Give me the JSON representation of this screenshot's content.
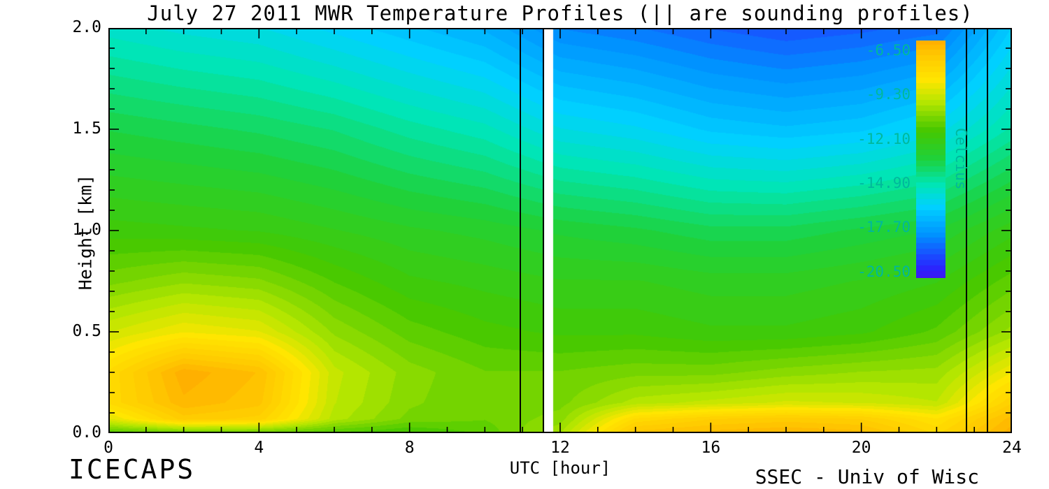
{
  "title": "July 27 2011 MWR Temperature Profiles (|| are sounding profiles)",
  "footer": {
    "left": "ICECAPS",
    "right": "SSEC - Univ of Wisc"
  },
  "axes": {
    "x": {
      "label": "UTC [hour]",
      "min": 0,
      "max": 24,
      "tick_values": [
        0,
        4,
        8,
        12,
        16,
        20,
        24
      ],
      "tick_labels": [
        "0",
        "4",
        "8",
        "12",
        "16",
        "20",
        "24"
      ],
      "minor_step": 1
    },
    "y": {
      "label": "Height [km]",
      "min": 0,
      "max": 2,
      "tick_values": [
        0,
        0.5,
        1.0,
        1.5,
        2.0
      ],
      "tick_labels": [
        "0.0",
        "0.5",
        "1.0",
        "1.5",
        "2.0"
      ],
      "minor_step": 0.1
    }
  },
  "colorbar": {
    "title": "Celcius",
    "labels": [
      "-6.50",
      "-9.30",
      "-12.10",
      "-14.90",
      "-17.70",
      "-20.50"
    ],
    "label_values": [
      -6.5,
      -9.3,
      -12.1,
      -14.9,
      -17.7,
      -20.5
    ],
    "label_color": "#00b89c",
    "range_top": -5.9,
    "range_bottom": -20.9
  },
  "colormap": [
    {
      "v": -22.0,
      "c": "#6000e0"
    },
    {
      "v": -20.2,
      "c": "#2828ff"
    },
    {
      "v": -18.2,
      "c": "#0092ff"
    },
    {
      "v": -16.4,
      "c": "#00d2ff"
    },
    {
      "v": -15.0,
      "c": "#00e6b4"
    },
    {
      "v": -13.4,
      "c": "#1ed23c"
    },
    {
      "v": -11.6,
      "c": "#46c800"
    },
    {
      "v": -9.8,
      "c": "#b4e600"
    },
    {
      "v": -8.4,
      "c": "#ffe600"
    },
    {
      "v": -6.8,
      "c": "#ffc800"
    },
    {
      "v": -5.0,
      "c": "#ff9600"
    }
  ],
  "chart_data": {
    "type": "heatmap",
    "title": "July 27 2011 MWR Temperature Profiles (|| are sounding profiles)",
    "xlabel": "UTC [hour]",
    "ylabel": "Height [km]",
    "unit": "Celcius",
    "xlim": [
      0,
      24
    ],
    "ylim": [
      0,
      2
    ],
    "x_hours": [
      0,
      2,
      4,
      6,
      8,
      10,
      12,
      14,
      16,
      18,
      20,
      22,
      24
    ],
    "y_heights_km": [
      0.0,
      0.07,
      0.15,
      0.3,
      0.5,
      0.75,
      1.0,
      1.5,
      2.0
    ],
    "values_celsius_rows_bottom_to_top": [
      [
        -11.5,
        -11.2,
        -11.2,
        -11.5,
        -11.8,
        -11.3,
        -10.0,
        -6.6,
        -6.3,
        -6.1,
        -6.3,
        -7.6,
        -5.9
      ],
      [
        -9.0,
        -7.0,
        -7.3,
        -9.8,
        -10.8,
        -11.0,
        -10.5,
        -7.8,
        -7.2,
        -7.0,
        -7.2,
        -8.2,
        -6.3
      ],
      [
        -7.8,
        -6.2,
        -6.7,
        -9.6,
        -10.6,
        -11.0,
        -10.8,
        -9.8,
        -9.5,
        -9.2,
        -9.3,
        -9.6,
        -7.2
      ],
      [
        -7.8,
        -5.9,
        -6.5,
        -9.5,
        -10.5,
        -11.0,
        -11.0,
        -10.8,
        -10.8,
        -10.5,
        -10.3,
        -10.2,
        -8.6
      ],
      [
        -9.3,
        -8.6,
        -8.9,
        -10.4,
        -11.2,
        -11.6,
        -11.8,
        -11.8,
        -12.0,
        -12.0,
        -11.8,
        -11.3,
        -10.2
      ],
      [
        -10.8,
        -10.4,
        -10.6,
        -11.4,
        -12.0,
        -12.2,
        -12.4,
        -12.4,
        -12.6,
        -12.6,
        -12.4,
        -12.1,
        -11.2
      ],
      [
        -11.9,
        -12.0,
        -12.1,
        -12.4,
        -12.7,
        -12.9,
        -13.2,
        -13.4,
        -13.7,
        -13.7,
        -13.4,
        -13.1,
        -12.2
      ],
      [
        -13.5,
        -13.7,
        -13.9,
        -14.2,
        -14.7,
        -15.1,
        -15.9,
        -16.2,
        -16.7,
        -16.9,
        -16.7,
        -16.1,
        -14.8
      ],
      [
        -15.4,
        -15.7,
        -15.9,
        -16.4,
        -16.9,
        -17.4,
        -18.4,
        -18.7,
        -19.1,
        -19.4,
        -19.2,
        -18.9,
        -16.6
      ]
    ],
    "contour_step_celsius": 0.35,
    "sounding_profile_hours": [
      10.95,
      11.55,
      22.8,
      23.35
    ],
    "data_gap_hours": [
      [
        11.58,
        11.82
      ]
    ],
    "legend_position": "upper right (colorbar inside plot)",
    "grid": false
  }
}
